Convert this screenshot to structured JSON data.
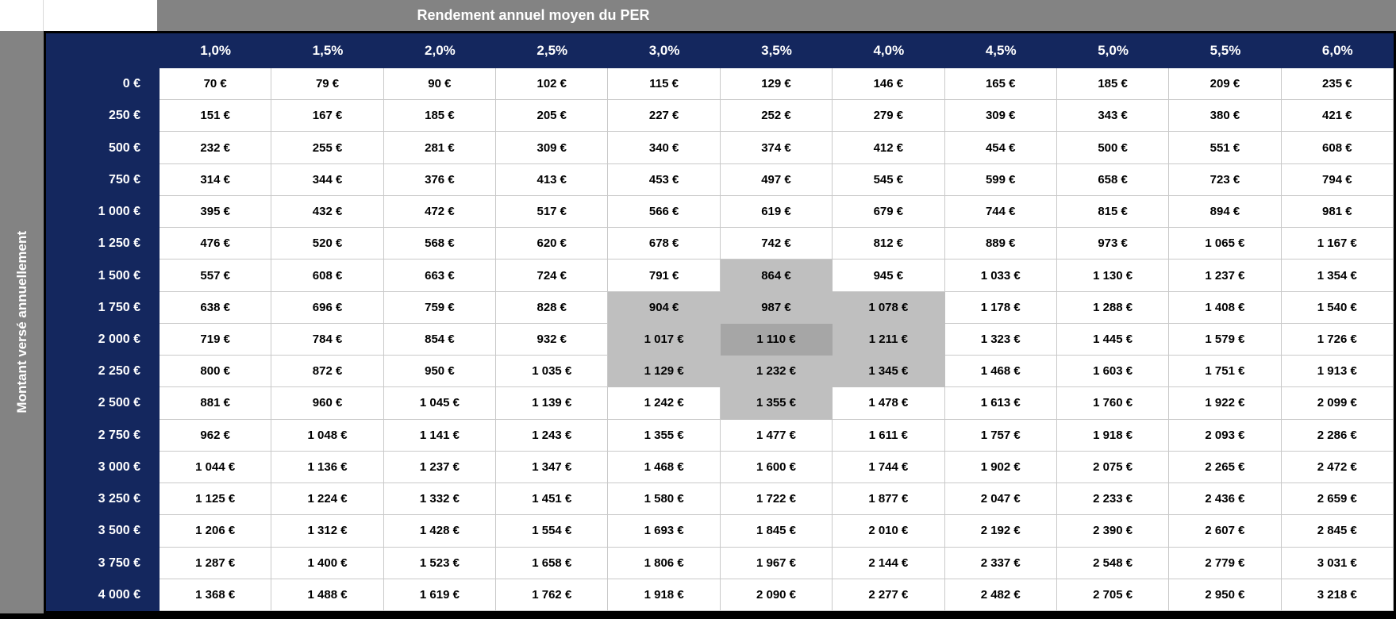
{
  "colors": {
    "navy_header": "#14275e",
    "band_gray": "#838383",
    "highlight_light": "#bfbfbf",
    "highlight_focus": "#a6a6a6",
    "grid_line": "#c9c9c9",
    "header_text": "#ffffff",
    "cell_text": "#000000",
    "outer_border": "#000000"
  },
  "chart_data": {
    "type": "table",
    "title": "Rendement annuel moyen du PER",
    "row_axis_label": "Montant versé annuellement",
    "currency_suffix": "€",
    "col_headers": [
      "1,0%",
      "1,5%",
      "2,0%",
      "2,5%",
      "3,0%",
      "3,5%",
      "4,0%",
      "4,5%",
      "5,0%",
      "5,5%",
      "6,0%"
    ],
    "row_values": [
      0,
      250,
      500,
      750,
      1000,
      1250,
      1500,
      1750,
      2000,
      2250,
      2500,
      2750,
      3000,
      3250,
      3500,
      3750,
      4000
    ],
    "values": [
      [
        70,
        79,
        90,
        102,
        115,
        129,
        146,
        165,
        185,
        209,
        235
      ],
      [
        151,
        167,
        185,
        205,
        227,
        252,
        279,
        309,
        343,
        380,
        421
      ],
      [
        232,
        255,
        281,
        309,
        340,
        374,
        412,
        454,
        500,
        551,
        608
      ],
      [
        314,
        344,
        376,
        413,
        453,
        497,
        545,
        599,
        658,
        723,
        794
      ],
      [
        395,
        432,
        472,
        517,
        566,
        619,
        679,
        744,
        815,
        894,
        981
      ],
      [
        476,
        520,
        568,
        620,
        678,
        742,
        812,
        889,
        973,
        1065,
        1167
      ],
      [
        557,
        608,
        663,
        724,
        791,
        864,
        945,
        1033,
        1130,
        1237,
        1354
      ],
      [
        638,
        696,
        759,
        828,
        904,
        987,
        1078,
        1178,
        1288,
        1408,
        1540
      ],
      [
        719,
        784,
        854,
        932,
        1017,
        1110,
        1211,
        1323,
        1445,
        1579,
        1726
      ],
      [
        800,
        872,
        950,
        1035,
        1129,
        1232,
        1345,
        1468,
        1603,
        1751,
        1913
      ],
      [
        881,
        960,
        1045,
        1139,
        1242,
        1355,
        1478,
        1613,
        1760,
        1922,
        2099
      ],
      [
        962,
        1048,
        1141,
        1243,
        1355,
        1477,
        1611,
        1757,
        1918,
        2093,
        2286
      ],
      [
        1044,
        1136,
        1237,
        1347,
        1468,
        1600,
        1744,
        1902,
        2075,
        2265,
        2472
      ],
      [
        1125,
        1224,
        1332,
        1451,
        1580,
        1722,
        1877,
        2047,
        2233,
        2436,
        2659
      ],
      [
        1206,
        1312,
        1428,
        1554,
        1693,
        1845,
        2010,
        2192,
        2390,
        2607,
        2845
      ],
      [
        1287,
        1400,
        1523,
        1658,
        1806,
        1967,
        2144,
        2337,
        2548,
        2779,
        3031
      ],
      [
        1368,
        1488,
        1619,
        1762,
        1918,
        2090,
        2277,
        2482,
        2705,
        2950,
        3218
      ]
    ],
    "highlight": {
      "light_color": "#bfbfbf",
      "focus_color": "#a6a6a6",
      "light_cells": [
        [
          6,
          5
        ],
        [
          7,
          4
        ],
        [
          7,
          5
        ],
        [
          7,
          6
        ],
        [
          8,
          4
        ],
        [
          8,
          6
        ],
        [
          9,
          4
        ],
        [
          9,
          5
        ],
        [
          9,
          6
        ],
        [
          10,
          5
        ]
      ],
      "focus_cell": [
        8,
        5
      ]
    },
    "layout": {
      "grid": "on",
      "legend_position": "none"
    }
  }
}
